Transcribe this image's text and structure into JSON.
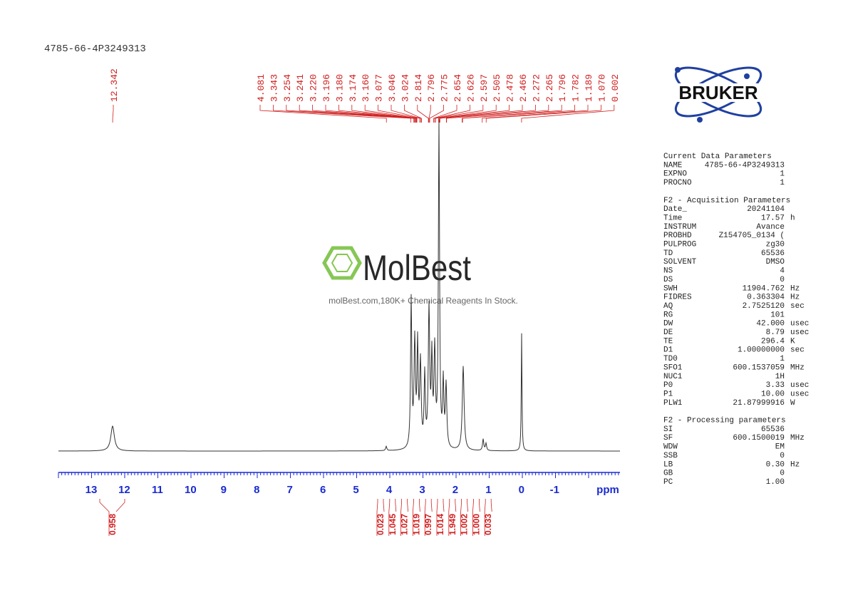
{
  "sample_name": "4785-66-4P3249313",
  "peak_labels": {
    "isolated": [
      "12.342"
    ],
    "group": [
      "4.081",
      "3.343",
      "3.254",
      "3.241",
      "3.220",
      "3.196",
      "3.180",
      "3.174",
      "3.160",
      "3.077",
      "3.046",
      "3.024",
      "2.814",
      "2.796",
      "2.775",
      "2.654",
      "2.626",
      "2.597",
      "2.505",
      "2.478",
      "2.466",
      "2.272",
      "2.265",
      "1.796",
      "1.782",
      "1.189",
      "1.070",
      "0.002"
    ]
  },
  "axis": {
    "ticks": [
      "13",
      "12",
      "11",
      "10",
      "9",
      "8",
      "7",
      "6",
      "5",
      "4",
      "3",
      "2",
      "1",
      "0",
      "-1"
    ],
    "unit": "ppm"
  },
  "integrals": {
    "isolated": [
      "0.958"
    ],
    "group": [
      "0.023",
      "1.045",
      "1.027",
      "1.019",
      "0.997",
      "1.014",
      "1.949",
      "1.002",
      "1.000",
      "0.033"
    ]
  },
  "watermark": {
    "brand": "MolBest",
    "tagline": "molBest.com,180K+ Chemical Reagents In Stock."
  },
  "logo": "BRUKER",
  "params": {
    "sections": [
      {
        "title": "Current Data Parameters",
        "rows": [
          [
            "NAME",
            "4785-66-4P3249313"
          ],
          [
            "EXPNO",
            "1"
          ],
          [
            "PROCNO",
            "1"
          ]
        ]
      },
      {
        "title": "F2 - Acquisition Parameters",
        "rows": [
          [
            "Date_",
            "20241104"
          ],
          [
            "Time",
            "17.57",
            "h"
          ],
          [
            "INSTRUM",
            "Avance"
          ],
          [
            "PROBHD",
            "Z154705_0134 ("
          ],
          [
            "PULPROG",
            "zg30"
          ],
          [
            "TD",
            "65536"
          ],
          [
            "SOLVENT",
            "DMSO"
          ],
          [
            "NS",
            "4"
          ],
          [
            "DS",
            "0"
          ],
          [
            "SWH",
            "11904.762",
            "Hz"
          ],
          [
            "FIDRES",
            "0.363304",
            "Hz"
          ],
          [
            "AQ",
            "2.7525120",
            "sec"
          ],
          [
            "RG",
            "101"
          ],
          [
            "DW",
            "42.000",
            "usec"
          ],
          [
            "DE",
            "8.79",
            "usec"
          ],
          [
            "TE",
            "296.4",
            "K"
          ],
          [
            "D1",
            "1.00000000",
            "sec"
          ],
          [
            "TD0",
            "1"
          ],
          [
            "SFO1",
            "600.1537059",
            "MHz"
          ],
          [
            "NUC1",
            "1H"
          ],
          [
            "P0",
            "3.33",
            "usec"
          ],
          [
            "P1",
            "10.00",
            "usec"
          ],
          [
            "PLW1",
            "21.87999916",
            "W"
          ]
        ]
      },
      {
        "title": "F2 - Processing parameters",
        "rows": [
          [
            "SI",
            "65536"
          ],
          [
            "SF",
            "600.1500019",
            "MHz"
          ],
          [
            "WDW",
            "EM"
          ],
          [
            "SSB",
            "0"
          ],
          [
            "LB",
            "0.30",
            "Hz"
          ],
          [
            "GB",
            "0"
          ],
          [
            "PC",
            "1.00"
          ]
        ]
      }
    ]
  }
}
